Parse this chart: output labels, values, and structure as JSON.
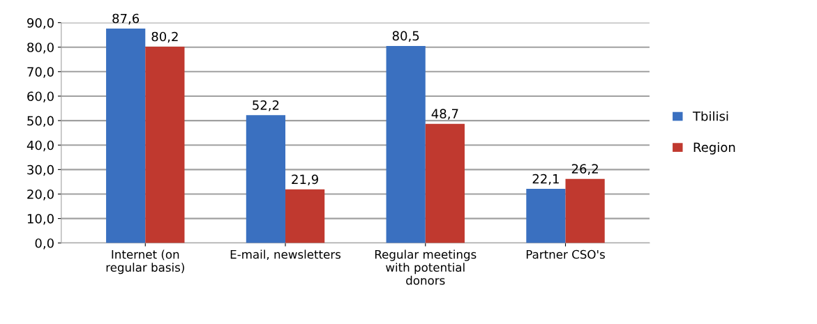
{
  "chart_data": {
    "type": "bar",
    "categories": [
      "Internet (on\nregular basis)",
      "E-mail, newsletters",
      "Regular meetings\nwith potential\ndonors",
      "Partner CSO's"
    ],
    "series": [
      {
        "name": "Tbilisi",
        "color": "#3a70c0",
        "values": [
          87.6,
          52.2,
          80.5,
          22.1
        ],
        "value_labels": [
          "87,6",
          "52,2",
          "80,5",
          "22,1"
        ]
      },
      {
        "name": "Region",
        "color": "#c0392f",
        "values": [
          80.2,
          21.9,
          48.7,
          26.2
        ],
        "value_labels": [
          "80,2",
          "21,9",
          "48,7",
          "26,2"
        ]
      }
    ],
    "ylim": [
      0,
      90
    ],
    "yticks": [
      {
        "value": 0,
        "label": "0,0"
      },
      {
        "value": 10,
        "label": "10,0"
      },
      {
        "value": 20,
        "label": "20,0"
      },
      {
        "value": 30,
        "label": "30,0"
      },
      {
        "value": 40,
        "label": "40,0"
      },
      {
        "value": 50,
        "label": "50,0"
      },
      {
        "value": 60,
        "label": "60,0"
      },
      {
        "value": 70,
        "label": "70,0"
      },
      {
        "value": 80,
        "label": "80,0"
      },
      {
        "value": 90,
        "label": "90,0"
      }
    ],
    "grid": "y",
    "legend": "right"
  }
}
